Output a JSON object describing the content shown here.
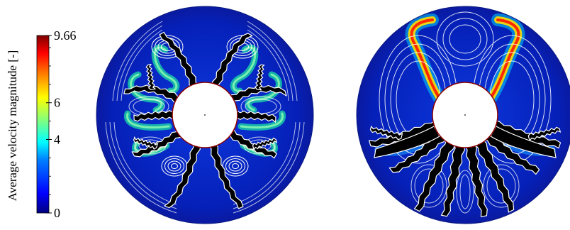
{
  "colorbar": {
    "label": "Average velocity  magnitude [-]",
    "min": 0,
    "max": 9.66,
    "ticks": [
      {
        "value": 0,
        "label": "0"
      },
      {
        "value": 4,
        "label": "4"
      },
      {
        "value": 6,
        "label": "6"
      },
      {
        "value": 9.66,
        "label": "9.66"
      }
    ],
    "colors": [
      "#00007f",
      "#0000ff",
      "#0080ff",
      "#00ffff",
      "#80ff80",
      "#ffff00",
      "#ff8000",
      "#ff0000",
      "#7f0000"
    ]
  },
  "panels": [
    {
      "name": "symmetric-flow-disc",
      "blades": 10,
      "vortex_pairs": 6
    },
    {
      "name": "asymmetric-flow-disc",
      "blades": 8,
      "vortex_pairs": 3
    }
  ]
}
